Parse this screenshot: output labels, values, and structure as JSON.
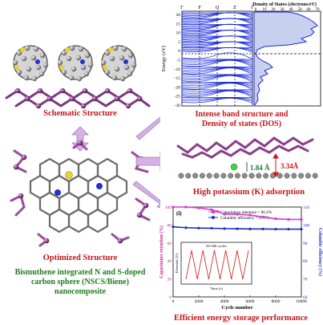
{
  "captions": {
    "schematic": "Schematic Structure",
    "optimized": "Optimized Structure",
    "band": "Intense band structure and",
    "band2": "Density of states (DOS)",
    "adsorption": "High potassium (K) adsorption",
    "storage": "Efficient energy storage performance",
    "composite_l1": "Bismuthene integrated  N and S-doped",
    "composite_l2": "carbon sphere (NSCS/Biene)",
    "composite_l3": "nanocomposite"
  },
  "band_panel": {
    "kpoints": [
      "Γ",
      "F",
      "Q",
      "Z",
      "Γ"
    ],
    "ylabel": "Energy (eV)",
    "yticks": [
      "20",
      "15",
      "10",
      "5",
      "0",
      "-5",
      "-10",
      "-15",
      "-20",
      "-25",
      "-30"
    ],
    "dos_title": "Density of States (electrons/eV)",
    "dos_xticks": [
      "0",
      "10",
      "20",
      "30",
      "40",
      "50",
      "60",
      "70"
    ]
  },
  "adsorption_panel": {
    "dist_a": "1.84 Å",
    "dist_b": "3.34Å"
  },
  "chart_data": {
    "type": "line",
    "panel_label": "(i)",
    "xlabel": "Cycle number",
    "ylabel_left": "Capacitance retention (%)",
    "ylabel_right": "Columbic efficiency (%)",
    "xlim": [
      0,
      10000
    ],
    "ylim_left": [
      0,
      100
    ],
    "ylim_right": [
      60,
      110
    ],
    "xticks": [
      "0",
      "2000",
      "4000",
      "6000",
      "8000",
      "10000"
    ],
    "yticks_left": [
      "0",
      "20",
      "40",
      "60",
      "80",
      "100"
    ],
    "yticks_right": [
      "60",
      "70",
      "80",
      "90",
      "100",
      "110"
    ],
    "legend": [
      "Capacitance retention = 86.2%",
      "Columbic efficiency = 97.7%"
    ],
    "series": [
      {
        "name": "Capacitance retention = 86.2%",
        "axis": "left",
        "color": "#d63bd6",
        "x": [
          0,
          1000,
          2000,
          3000,
          3500,
          4000,
          5000,
          6000,
          7000,
          8000,
          9000,
          10000
        ],
        "y": [
          100,
          100,
          99,
          97,
          95,
          92,
          92,
          91,
          89,
          87,
          86.2,
          86.2
        ]
      },
      {
        "name": "Columbic efficiency = 97.7%",
        "axis": "right",
        "color": "#1f2fbf",
        "x": [
          0,
          1000,
          2000,
          3000,
          4000,
          5000,
          6000,
          7000,
          8000,
          9000,
          10000
        ],
        "y": [
          99,
          98.5,
          98.3,
          98.2,
          98,
          97.9,
          97.8,
          97.8,
          97.7,
          97.7,
          97.7
        ]
      }
    ],
    "inset": {
      "title": "50-300 cycles",
      "xlabel": "Time (s)",
      "ylabel": "Potential (V)",
      "yticks": [
        "0.2",
        "0.4",
        "0.6",
        "0.8",
        "1.0",
        "1.2"
      ]
    }
  },
  "colors": {
    "arrow": "#c9a0e0",
    "title_red": "#c0161b",
    "title_green": "#1e7d1e",
    "band_blue": "#1a2be0"
  }
}
